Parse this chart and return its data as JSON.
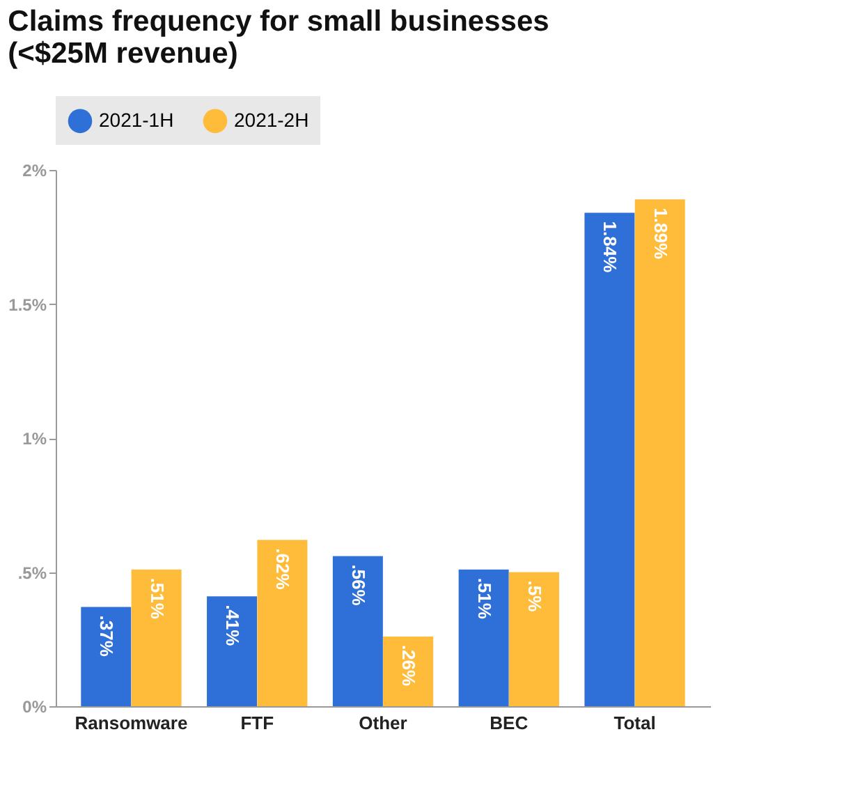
{
  "chart_data": {
    "type": "bar",
    "title": "Claims frequency for small businesses\n(<$25M revenue)",
    "categories": [
      "Ransomware",
      "FTF",
      "Other",
      "BEC",
      "Total"
    ],
    "series": [
      {
        "name": "2021-1H",
        "color": "#2f6fd8",
        "values": [
          0.37,
          0.41,
          0.56,
          0.51,
          1.84
        ],
        "value_labels": [
          ".37%",
          ".41%",
          ".56%",
          ".51%",
          "1.84%"
        ]
      },
      {
        "name": "2021-2H",
        "color": "#ffbb3a",
        "values": [
          0.51,
          0.62,
          0.26,
          0.5,
          1.89
        ],
        "value_labels": [
          ".51%",
          ".62%",
          ".26%",
          ".5%",
          "1.89%"
        ]
      }
    ],
    "ylim": [
      0,
      2
    ],
    "yticks": [
      {
        "value": 0,
        "label": "0%"
      },
      {
        "value": 0.5,
        "label": ".5%"
      },
      {
        "value": 1,
        "label": "1%"
      },
      {
        "value": 1.5,
        "label": "1.5%"
      },
      {
        "value": 2,
        "label": "2%"
      }
    ],
    "legend": "top",
    "grid": false
  }
}
